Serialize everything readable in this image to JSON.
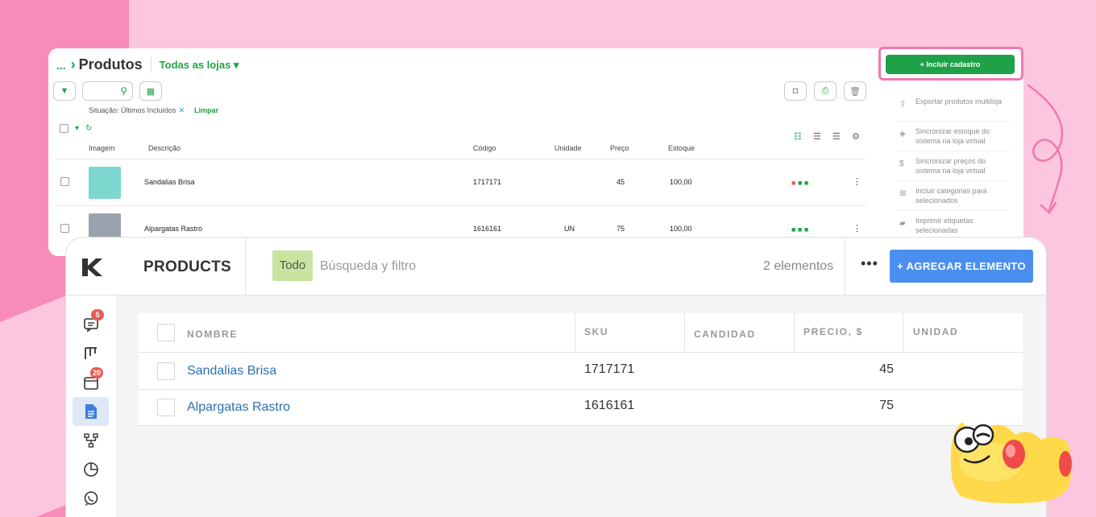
{
  "back_window": {
    "breadcrumb_dots": "...",
    "title": "Produtos",
    "store_selector": "Todas as lojas",
    "filter_situation": "Situação: Últimos Incluídos",
    "clear_label": "Limpar",
    "include_button": "+ Incluir cadastro",
    "columns": [
      "Imagem",
      "Descrição",
      "Código",
      "Unidade",
      "Preço",
      "Estoque"
    ],
    "rows": [
      {
        "description": "Sandalias Brisa",
        "code": "1717171",
        "unit": "",
        "price": "45",
        "stock": "100,00"
      },
      {
        "description": "Alpargatas Rastro",
        "code": "1616161",
        "unit": "UN",
        "price": "75",
        "stock": "100,00"
      }
    ],
    "menu": [
      {
        "icon": "upload-icon",
        "label": "Exportar produtos multiloja"
      },
      {
        "icon": "box-icon",
        "label": "Sincronizar estoque do sistema na loja virtual"
      },
      {
        "icon": "dollar-icon",
        "label": "Sincronizar preços do sistema na loja virtual"
      },
      {
        "icon": "hierarchy-icon",
        "label": "Incluir categorias para selecionados"
      },
      {
        "icon": "label-icon",
        "label": "Imprimir etiquetas selecionadas"
      }
    ]
  },
  "front_window": {
    "title": "PRODUCTS",
    "filter_tag": "Todo",
    "search_placeholder": "Búsqueda y filtro",
    "count": "2 elementos",
    "more": "•••",
    "add_button": "+ AGREGAR ELEMENTO",
    "sidebar": [
      {
        "icon": "chat-icon",
        "badge": "5"
      },
      {
        "icon": "kanban-icon",
        "badge": ""
      },
      {
        "icon": "calendar-icon",
        "badge": "20"
      },
      {
        "icon": "document-icon",
        "badge": "",
        "active": true
      },
      {
        "icon": "workflow-icon",
        "badge": ""
      },
      {
        "icon": "pie-chart-icon",
        "badge": ""
      },
      {
        "icon": "whatsapp-icon",
        "badge": ""
      }
    ],
    "columns": [
      "NOMBRE",
      "SKU",
      "CANDIDAD",
      "PRECIO, $",
      "UNIDAD"
    ],
    "rows": [
      {
        "name": "Sandalias Brisa",
        "sku": "1717171",
        "quantity": "",
        "price": "45",
        "unit": ""
      },
      {
        "name": "Alpargatas Rastro",
        "sku": "1616161",
        "quantity": "",
        "price": "75",
        "unit": ""
      }
    ]
  },
  "colors": {
    "green": "#1ea446",
    "blue_button": "#4a8fee",
    "link_blue": "#2f6fb2",
    "pink": "#f078ae"
  }
}
